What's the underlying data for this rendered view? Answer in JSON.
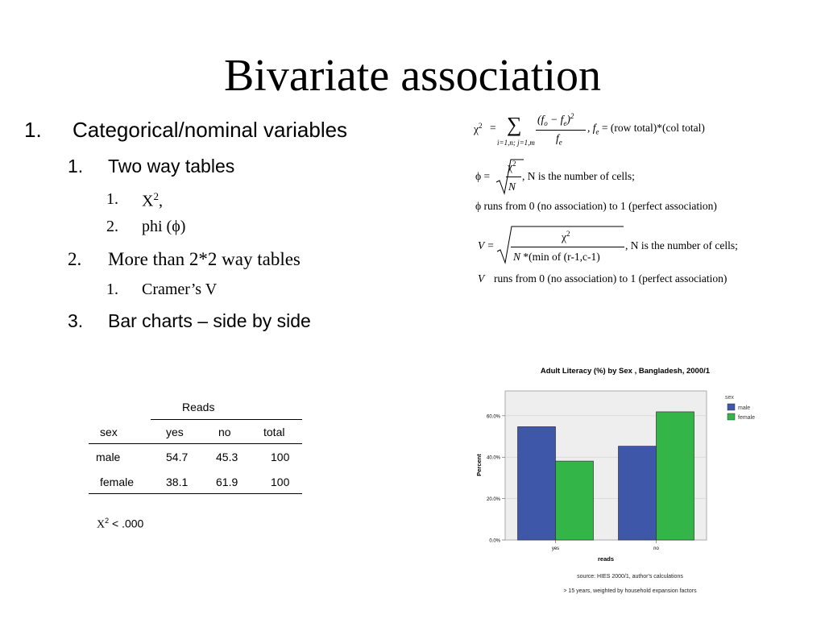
{
  "title": "Bivariate association",
  "outline": {
    "item1": {
      "num": "1.",
      "text": "Categorical/nominal variables"
    },
    "item1_1": {
      "num": "1.",
      "text": "Two way tables"
    },
    "item1_1_1": {
      "num": "1.",
      "text": "X",
      "sup": "2",
      "after": ","
    },
    "item1_1_2": {
      "num": "2.",
      "text": "phi (ϕ)"
    },
    "item1_2": {
      "num": "2.",
      "text": "More than 2*2 way tables"
    },
    "item1_2_1": {
      "num": "1.",
      "text": "Cramer’s V"
    },
    "item1_3": {
      "num": "3.",
      "text": "Bar charts – side by side"
    }
  },
  "formulas": {
    "chi": {
      "lhs": "χ",
      "sup": "2",
      "eq": "=",
      "sum": "∑",
      "sum_sub": "i=1,n; j=1,m",
      "num": "(f",
      "num_o": "o",
      "num_minus": " − f",
      "num_e": "e",
      "num_close": ")",
      "num_sup": "2",
      "den": "f",
      "den_sub": "e",
      "fe": ", f",
      "fe_sub": "e",
      "fe_rhs": " = (row total)*(col total)"
    },
    "phi": {
      "lhs": "ϕ =",
      "num": "χ",
      "num_sup": "2",
      "den": "N",
      "note": ", N is the number of cells;"
    },
    "phi_range": "ϕ runs from 0 (no association) to 1 (perfect association)",
    "cramer": {
      "lhs": "V =",
      "num": "χ",
      "num_sup": "2",
      "den_n": "N",
      "den_rest": " *(min of (r-1,c-1)",
      "note": ", N is the number of cells;"
    },
    "cramer_range_v": "V",
    "cramer_range": "runs from 0 (no association) to 1 (perfect association)"
  },
  "table": {
    "header_top": "Reads",
    "columns": [
      "sex",
      "yes",
      "no",
      "total"
    ],
    "rows": [
      [
        "male",
        "54.7",
        "45.3",
        "100"
      ],
      [
        "female",
        "38.1",
        "61.9",
        "100"
      ]
    ],
    "footnote_x": "X",
    "footnote_sup": "2",
    "footnote_rest": " < .000"
  },
  "chart_data": {
    "type": "bar",
    "title": "Adult Literacy (%) by Sex , Bangladesh, 2000/1",
    "categories": [
      "yes",
      "no"
    ],
    "series": [
      {
        "name": "male",
        "values": [
          54.7,
          45.3
        ],
        "color": "#3f57a8"
      },
      {
        "name": "female",
        "values": [
          38.1,
          61.9
        ],
        "color": "#33b548"
      }
    ],
    "xlabel": "reads",
    "ylabel": "Percent",
    "yticks": [
      "0.0%",
      "20.0%",
      "40.0%",
      "60.0%"
    ],
    "ylim": [
      0,
      72
    ],
    "legend_title": "sex",
    "legend_placement": "right",
    "source_lines": [
      "source: HIES 2000/1, author's calculations",
      "> 15 years, weighted by household expansion factors"
    ]
  }
}
